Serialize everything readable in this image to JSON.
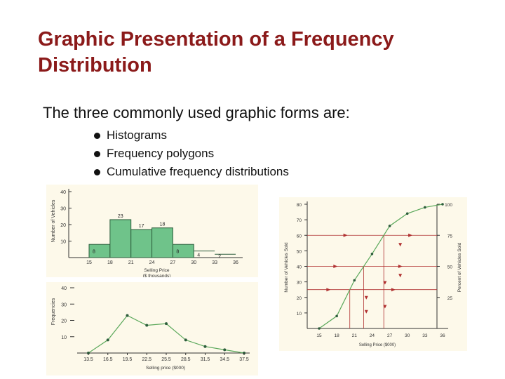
{
  "slide": {
    "title": "Graphic Presentation of a Frequency Distribution",
    "intro": "The three commonly used graphic forms are:",
    "bullets": [
      "Histograms",
      "Frequency polygons",
      "Cumulative frequency distributions"
    ]
  },
  "colors": {
    "title": "#8b1a1a",
    "bar_fill": "#6fc38a",
    "line": "#5aa85a",
    "marker": "#b03030",
    "panel": "#fdf9ea"
  },
  "chart_data": [
    {
      "type": "bar",
      "categories": [
        "15-18",
        "18-21",
        "21-24",
        "24-27",
        "27-30",
        "30-33",
        "33-36"
      ],
      "x_ticks": [
        "15",
        "18",
        "21",
        "24",
        "27",
        "30",
        "33",
        "36"
      ],
      "values": [
        8,
        23,
        17,
        18,
        8,
        4,
        2
      ],
      "ylabel": "Number of Vehicles",
      "xlabel": "Selling Price ($ thousands)",
      "yticks": [
        "10",
        "20",
        "30",
        "40"
      ],
      "ylim": [
        0,
        40
      ],
      "xlim": [
        15,
        36
      ]
    },
    {
      "type": "line",
      "x": [
        13.5,
        16.5,
        19.5,
        22.5,
        25.5,
        28.5,
        31.5,
        34.5,
        37.5
      ],
      "x_ticks": [
        "13.5",
        "16.5",
        "19.5",
        "22.5",
        "25.5",
        "28.5",
        "31.5",
        "34.5",
        "37.5"
      ],
      "y": [
        0,
        8,
        23,
        17,
        18,
        8,
        4,
        2,
        0
      ],
      "ylabel": "Frequencies",
      "xlabel": "Selling price ($000)",
      "yticks": [
        "10",
        "20",
        "30",
        "40"
      ],
      "ylim": [
        0,
        40
      ],
      "xlim": [
        13.5,
        37.5
      ]
    },
    {
      "type": "line",
      "x": [
        15,
        18,
        21,
        24,
        27,
        30,
        33,
        36
      ],
      "x_ticks": [
        "15",
        "18",
        "21",
        "24",
        "27",
        "30",
        "33",
        "36"
      ],
      "y": [
        0,
        8,
        31,
        48,
        66,
        74,
        78,
        80
      ],
      "ylabel": "Number of Vehicles Sold",
      "y2label": "Percent of Vehicles Sold",
      "xlabel": "Selling Price ($000)",
      "yticks": [
        "10",
        "20",
        "30",
        "40",
        "50",
        "60",
        "70",
        "80"
      ],
      "y2ticks": [
        "25",
        "50",
        "75",
        "100"
      ],
      "ylim": [
        0,
        80
      ],
      "xlim": [
        15,
        36
      ]
    }
  ]
}
